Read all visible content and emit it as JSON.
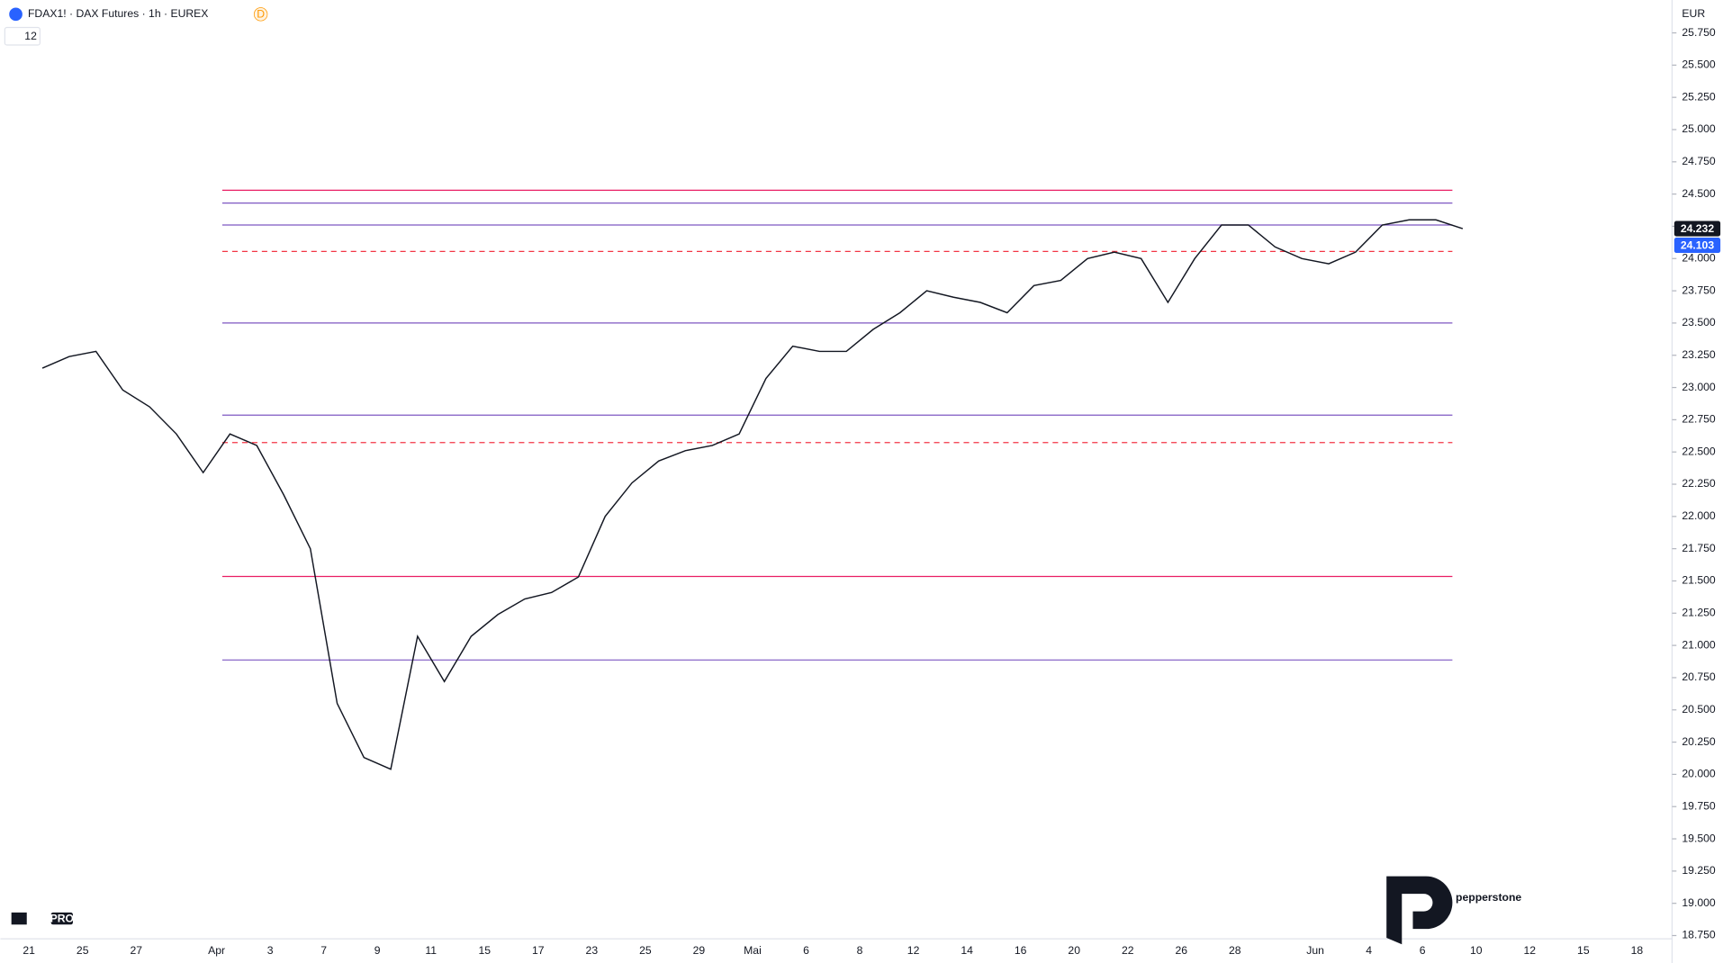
{
  "chart_data": {
    "type": "line",
    "title": "FDAX1! · DAX Futures · 1h · EUREX",
    "exchange_badge": "D",
    "counter": "12",
    "currency": "EUR",
    "brand": "pepperstone",
    "logo_text": "PRO",
    "grid": false,
    "categories": [
      "21",
      null,
      "25",
      null,
      "27",
      null,
      null,
      "Apr",
      null,
      "3",
      null,
      "7",
      null,
      "9",
      null,
      "11",
      null,
      "15",
      null,
      "17",
      null,
      "23",
      null,
      "25",
      null,
      "29",
      null,
      "Mai",
      null,
      "6",
      null,
      "8",
      null,
      "12",
      null,
      "14",
      null,
      "16",
      null,
      "20",
      null,
      "22",
      null,
      "26",
      null,
      "28",
      null,
      null,
      "Jun",
      null,
      "4",
      null,
      "6",
      null,
      "10",
      null,
      "12",
      null,
      "15",
      null,
      "18",
      null
    ],
    "series": [
      {
        "name": "FDAX1!",
        "color": "#131722",
        "values": [
          23150,
          23240,
          23280,
          22980,
          22850,
          22640,
          22340,
          22640,
          22550,
          22170,
          21750,
          20550,
          20130,
          20040,
          21070,
          20720,
          21070,
          21240,
          21360,
          21410,
          21530,
          22000,
          22260,
          22430,
          22510,
          22550,
          22640,
          23070,
          23320,
          23280,
          23280,
          23450,
          23580,
          23750,
          23700,
          23660,
          23580,
          23790,
          23830,
          24000,
          24050,
          24000,
          23660,
          24000,
          24260,
          24260,
          24090,
          24000,
          23960,
          24050,
          24260,
          24300,
          24300,
          24232,
          null,
          null,
          null,
          null,
          null,
          null,
          null,
          null
        ]
      }
    ],
    "levels": [
      {
        "value": 24530,
        "color": "#e91e63",
        "style": "solid"
      },
      {
        "value": 21535,
        "color": "#e91e63",
        "style": "solid"
      },
      {
        "value": 24055,
        "color": "#f23645",
        "style": "dashed"
      },
      {
        "value": 22573,
        "color": "#f23645",
        "style": "dashed"
      },
      {
        "value": 24430,
        "color": "#7e57c2",
        "style": "solid"
      },
      {
        "value": 24260,
        "color": "#7e57c2",
        "style": "solid"
      },
      {
        "value": 23500,
        "color": "#7e57c2",
        "style": "solid"
      },
      {
        "value": 22786,
        "color": "#7e57c2",
        "style": "solid"
      },
      {
        "value": 20887,
        "color": "#7e57c2",
        "style": "solid"
      }
    ],
    "last_price": {
      "value": 24232,
      "label": "24.232"
    },
    "line_price": {
      "value": 24103,
      "label": "24.103"
    },
    "ylim": [
      18750,
      26005
    ],
    "yticks": [
      {
        "value": 25750,
        "label": "25.750"
      },
      {
        "value": 25500,
        "label": "25.500"
      },
      {
        "value": 25250,
        "label": "25.250"
      },
      {
        "value": 25000,
        "label": "25.000"
      },
      {
        "value": 24750,
        "label": "24.750"
      },
      {
        "value": 24500,
        "label": "24.500"
      },
      {
        "value": 24250,
        "label": "24.250"
      },
      {
        "value": 24000,
        "label": "24.000"
      },
      {
        "value": 23750,
        "label": "23.750"
      },
      {
        "value": 23500,
        "label": "23.500"
      },
      {
        "value": 23250,
        "label": "23.250"
      },
      {
        "value": 23000,
        "label": "23.000"
      },
      {
        "value": 22750,
        "label": "22.750"
      },
      {
        "value": 22500,
        "label": "22.500"
      },
      {
        "value": 22250,
        "label": "22.250"
      },
      {
        "value": 22000,
        "label": "22.000"
      },
      {
        "value": 21750,
        "label": "21.750"
      },
      {
        "value": 21500,
        "label": "21.500"
      },
      {
        "value": 21250,
        "label": "21.250"
      },
      {
        "value": 21000,
        "label": "21.000"
      },
      {
        "value": 20750,
        "label": "20.750"
      },
      {
        "value": 20500,
        "label": "20.500"
      },
      {
        "value": 20250,
        "label": "20.250"
      },
      {
        "value": 20000,
        "label": "20.000"
      },
      {
        "value": 19750,
        "label": "19.750"
      },
      {
        "value": 19500,
        "label": "19.500"
      },
      {
        "value": 19250,
        "label": "19.250"
      },
      {
        "value": 19000,
        "label": "19.000"
      },
      {
        "value": 18750,
        "label": "18.750"
      }
    ]
  }
}
